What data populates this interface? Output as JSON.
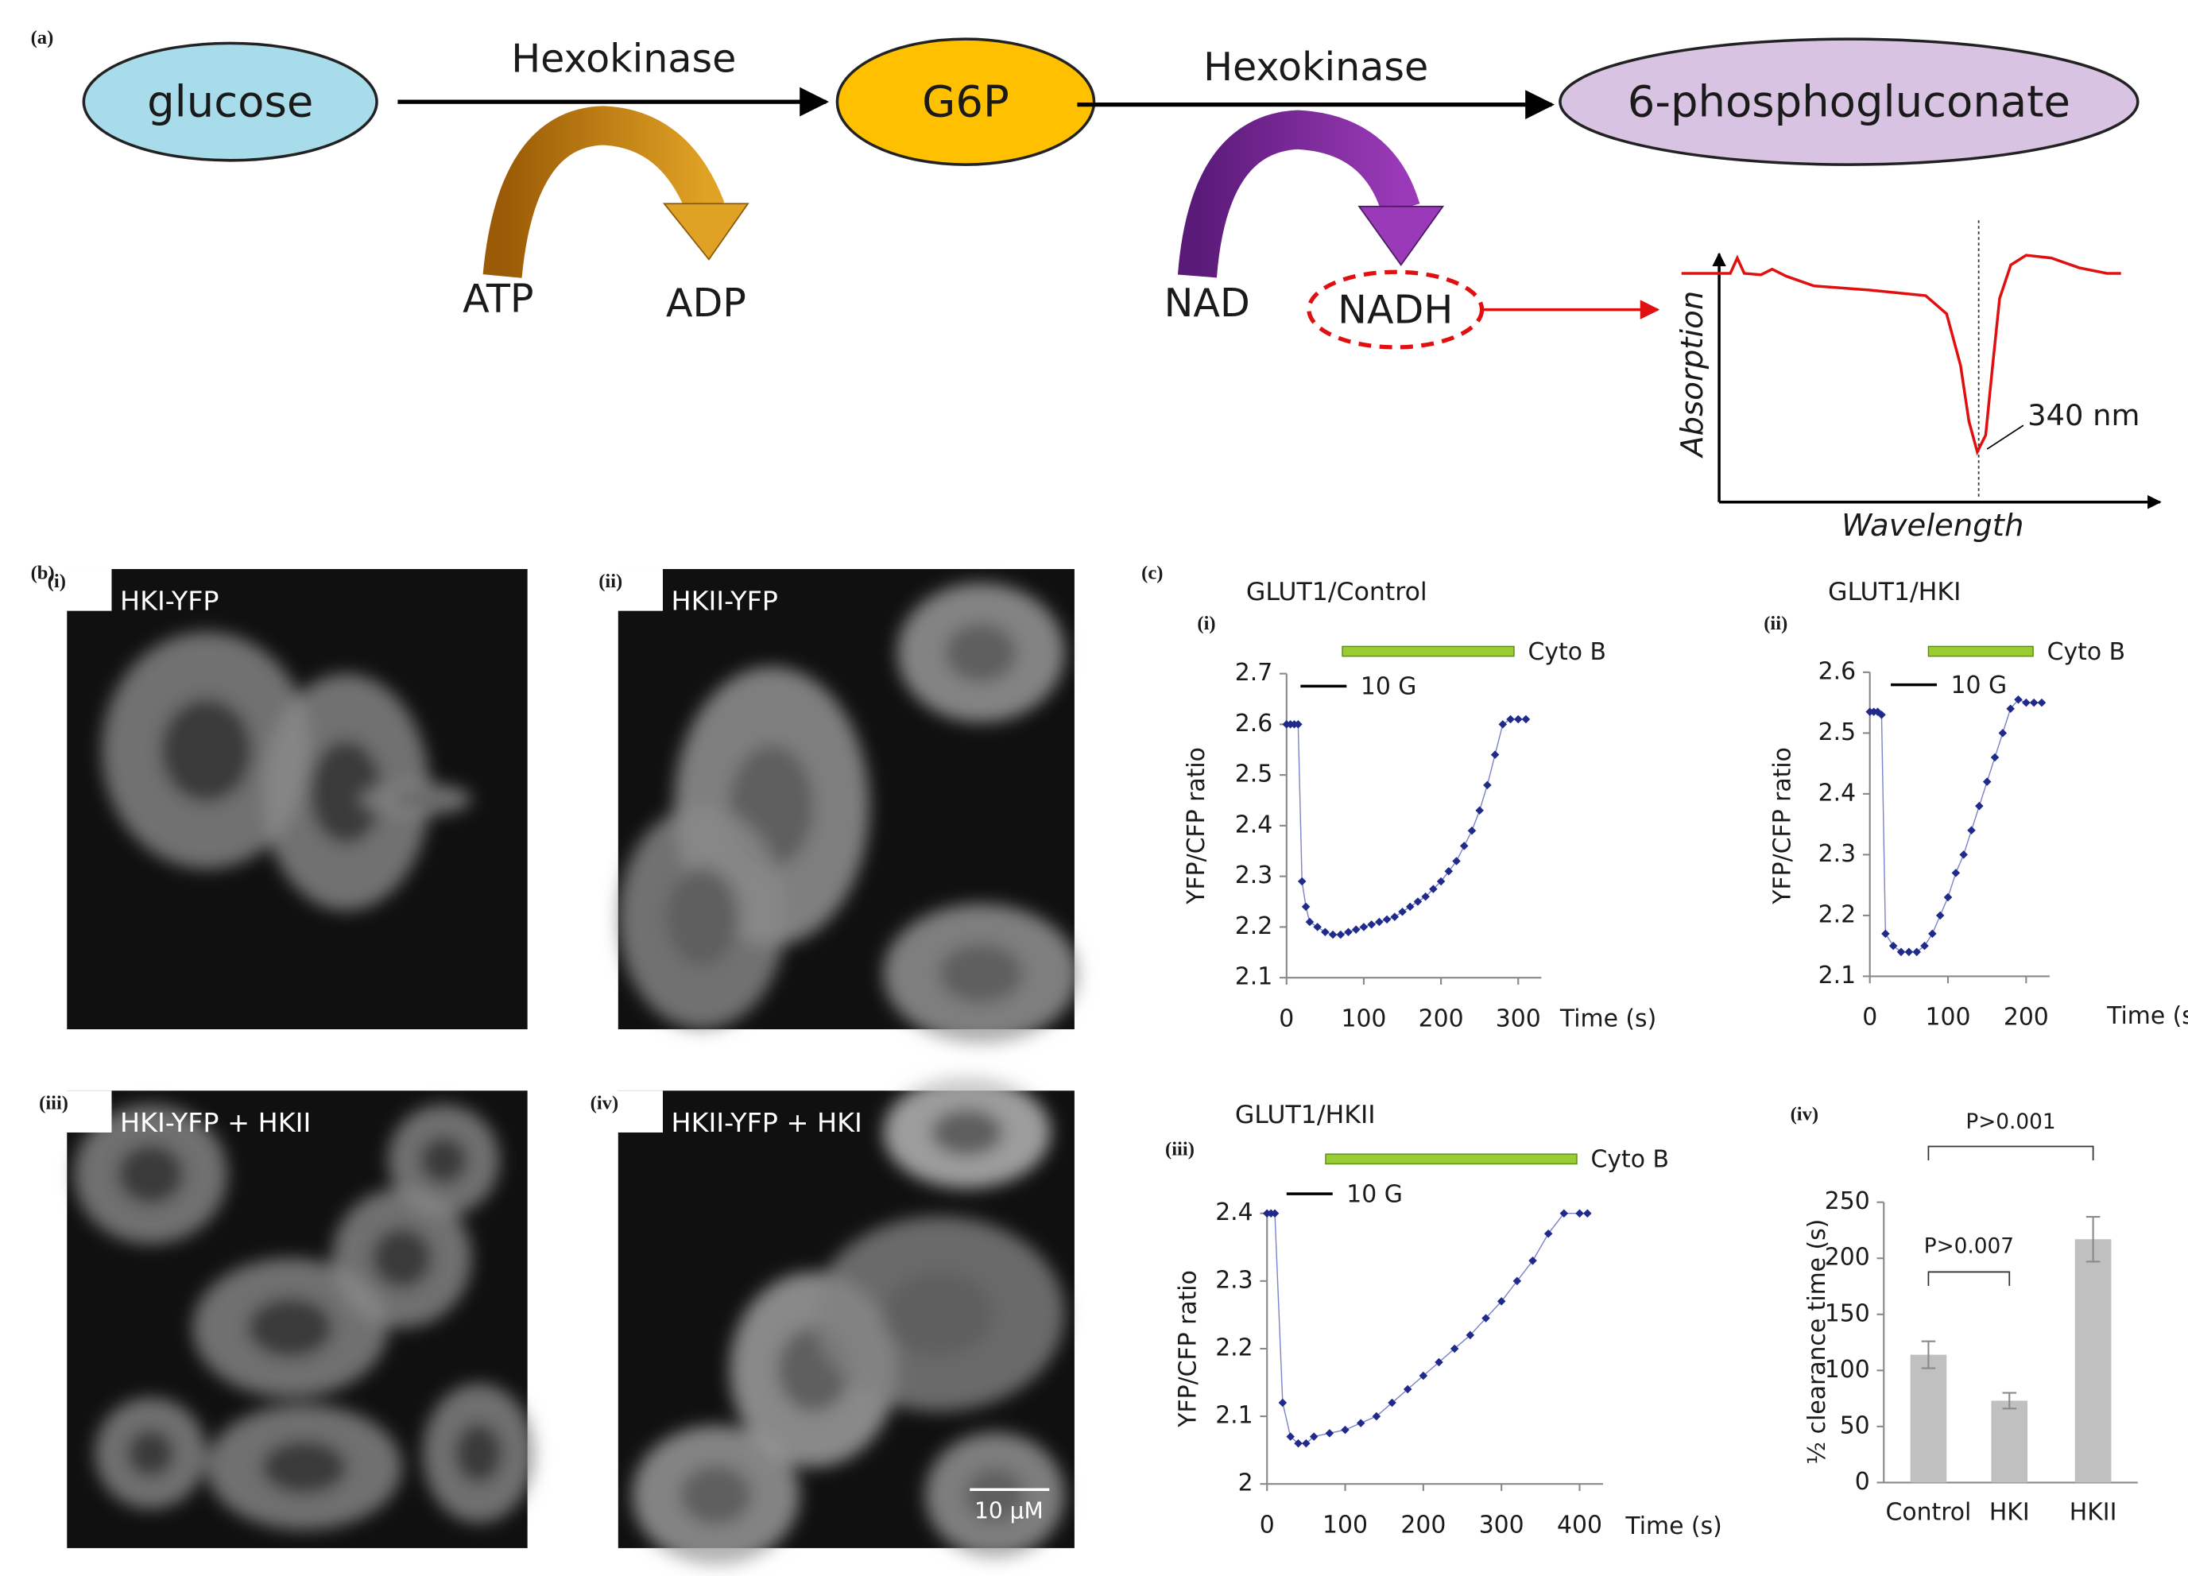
{
  "panel_a": {
    "label": "(a)",
    "nodes": [
      {
        "label": "glucose"
      },
      {
        "label": "G6P"
      },
      {
        "label": "6-phosphogluconate"
      }
    ],
    "reactions": [
      {
        "enzyme": "Hexokinase",
        "substrate": "ATP",
        "product": "ADP"
      },
      {
        "enzyme": "Hexokinase",
        "substrate": "NAD",
        "product": "NADH"
      }
    ],
    "spectrum": {
      "ylabel": "Absorption",
      "xlabel": "Wavelength",
      "annotation": "340 nm"
    }
  },
  "panel_b": {
    "label": "(b)",
    "images": [
      {
        "label": "(i)",
        "caption": "HKI-YFP"
      },
      {
        "label": "(ii)",
        "caption": "HKII-YFP"
      },
      {
        "label": "(iii)",
        "caption": "HKI-YFP + HKII"
      },
      {
        "label": "(iv)",
        "caption": "HKII-YFP + HKI"
      }
    ],
    "scale_bar": "10 µM"
  },
  "panel_c_label": "(c)",
  "chart_data": [
    {
      "type": "line",
      "panel": "(i)",
      "title": "GLUT1/Control",
      "xlabel": "Time (s)",
      "ylabel": "YFP/CFP ratio",
      "annotations": [
        "10 G",
        "Cyto B"
      ],
      "color": "#1f2a8a",
      "x": [
        0,
        5,
        10,
        15,
        20,
        25,
        30,
        40,
        50,
        60,
        70,
        80,
        90,
        100,
        110,
        120,
        130,
        140,
        150,
        160,
        170,
        180,
        190,
        200,
        210,
        220,
        230,
        240,
        250,
        260,
        270,
        280,
        290,
        300,
        310
      ],
      "values": [
        2.6,
        2.6,
        2.6,
        2.6,
        2.29,
        2.24,
        2.21,
        2.2,
        2.19,
        2.185,
        2.185,
        2.19,
        2.195,
        2.2,
        2.205,
        2.21,
        2.215,
        2.22,
        2.23,
        2.24,
        2.25,
        2.26,
        2.275,
        2.29,
        2.31,
        2.33,
        2.36,
        2.39,
        2.43,
        2.48,
        2.54,
        2.6,
        2.61,
        2.61,
        2.61
      ],
      "xlim": [
        0,
        330
      ],
      "xticks": [
        0,
        100,
        200,
        300
      ],
      "ylim": [
        2.1,
        2.7
      ],
      "yticks": [
        2.1,
        2.2,
        2.3,
        2.4,
        2.5,
        2.6,
        2.7
      ]
    },
    {
      "type": "line",
      "panel": "(ii)",
      "title": "GLUT1/HKI",
      "xlabel": "Time (s)",
      "ylabel": "YFP/CFP ratio",
      "annotations": [
        "10 G",
        "Cyto B"
      ],
      "color": "#1f2a8a",
      "x": [
        0,
        5,
        10,
        15,
        20,
        30,
        40,
        50,
        60,
        70,
        80,
        90,
        100,
        110,
        120,
        130,
        140,
        150,
        160,
        170,
        180,
        190,
        200,
        210,
        220
      ],
      "values": [
        2.535,
        2.535,
        2.535,
        2.53,
        2.17,
        2.15,
        2.14,
        2.14,
        2.14,
        2.15,
        2.17,
        2.2,
        2.23,
        2.27,
        2.3,
        2.34,
        2.38,
        2.42,
        2.46,
        2.5,
        2.54,
        2.555,
        2.55,
        2.55,
        2.55
      ],
      "xlim": [
        0,
        230
      ],
      "xticks": [
        0,
        100,
        200
      ],
      "ylim": [
        2.1,
        2.6
      ],
      "yticks": [
        2.1,
        2.2,
        2.3,
        2.4,
        2.5,
        2.6
      ]
    },
    {
      "type": "line",
      "panel": "(iii)",
      "title": "GLUT1/HKII",
      "xlabel": "Time (s)",
      "ylabel": "YFP/CFP ratio",
      "annotations": [
        "10 G",
        "Cyto B"
      ],
      "color": "#1f2a8a",
      "x": [
        0,
        5,
        10,
        20,
        30,
        40,
        50,
        60,
        80,
        100,
        120,
        140,
        160,
        180,
        200,
        220,
        240,
        260,
        280,
        300,
        320,
        340,
        360,
        380,
        400,
        410
      ],
      "values": [
        2.4,
        2.4,
        2.4,
        2.12,
        2.07,
        2.06,
        2.06,
        2.07,
        2.075,
        2.08,
        2.09,
        2.1,
        2.12,
        2.14,
        2.16,
        2.18,
        2.2,
        2.22,
        2.245,
        2.27,
        2.3,
        2.33,
        2.37,
        2.4,
        2.4,
        2.4
      ],
      "xlim": [
        0,
        430
      ],
      "xticks": [
        0,
        100,
        200,
        300,
        400
      ],
      "ylim": [
        2,
        2.4
      ],
      "yticks": [
        2,
        2.1,
        2.2,
        2.3,
        2.4
      ]
    },
    {
      "type": "bar",
      "panel": "(iv)",
      "ylabel": "½ clearance time (s)",
      "color": "#c0c0c0",
      "categories": [
        "Control",
        "HKI",
        "HKII"
      ],
      "values": [
        114,
        73,
        217
      ],
      "errors": [
        12,
        7,
        20
      ],
      "comparisons": [
        "P>0.007",
        "P>0.001"
      ],
      "ylim": [
        0,
        250
      ],
      "yticks": [
        0,
        50,
        100,
        150,
        200,
        250
      ]
    }
  ]
}
